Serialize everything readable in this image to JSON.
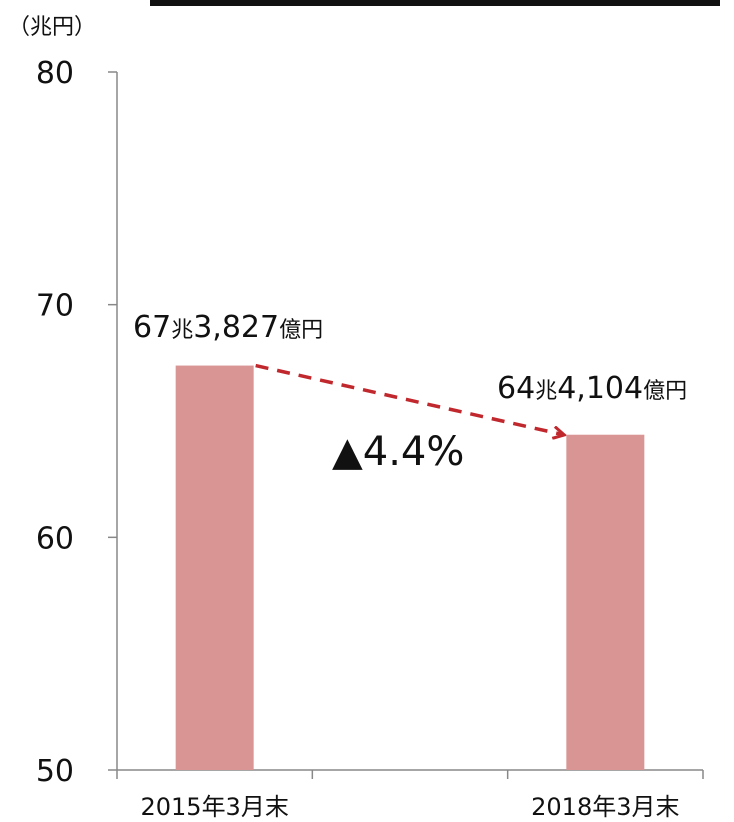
{
  "chart_data": {
    "type": "bar",
    "title": "",
    "unit_label": "（兆円）",
    "categories": [
      "2015年3月末",
      "2018年3月末"
    ],
    "values": [
      67.3827,
      64.4104
    ],
    "data_labels": [
      {
        "number": "67",
        "unit1": "兆",
        "number2": "3,827",
        "unit2": "億円"
      },
      {
        "number": "64",
        "unit1": "兆",
        "number2": "4,104",
        "unit2": "億円"
      }
    ],
    "ylim": [
      50,
      80
    ],
    "yticks": [
      50,
      60,
      70,
      80
    ],
    "ytick_labels": [
      "50",
      "60",
      "70",
      "80"
    ],
    "grid": false,
    "legend": "none",
    "bar_color": "#d99594",
    "arrow_color": "#c0282d",
    "change_annotation": "▲4.4%"
  }
}
